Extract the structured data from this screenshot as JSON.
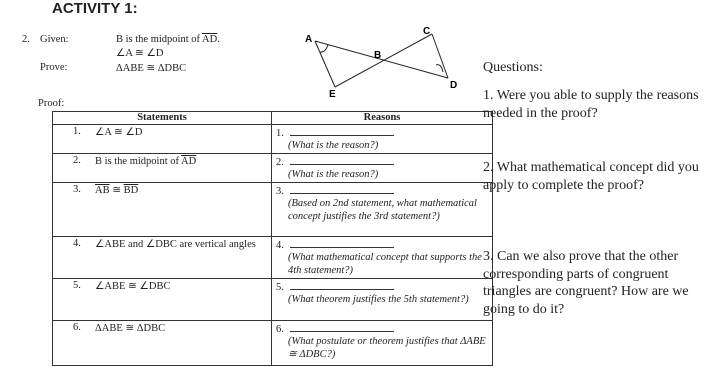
{
  "header": {
    "title": "ACTIVITY 1:"
  },
  "problem": {
    "number": "2.",
    "given_label": "Given:",
    "given_1_text": "B is the midpoint of",
    "given_1_segment": "AD",
    "given_2": "∠A ≅ ∠D",
    "prove_label": "Prove:",
    "prove": "ΔABE ≅ ΔDBC",
    "proof_label": "Proof:"
  },
  "diagram": {
    "labels": [
      "A",
      "B",
      "C",
      "D",
      "E"
    ]
  },
  "table": {
    "headers": [
      "Statements",
      "Reasons"
    ],
    "rows": [
      {
        "number": "1.",
        "statement": "∠A ≅ ∠D",
        "reason_number": "1.",
        "hint": "(What is the reason?)"
      },
      {
        "number": "2.",
        "statement": "B is the midpoint of",
        "segment": "AD",
        "reason_number": "2.",
        "hint": "(What is the reason?)"
      },
      {
        "number": "3.",
        "statement": "",
        "segment": "AB",
        "connector": "≅",
        "segment_2": "BD",
        "reason_number": "3.",
        "hint": "(Based on 2nd statement, what mathematical concept justifies the 3rd statement?)"
      },
      {
        "number": "4.",
        "statement": "∠ABE and ∠DBC are vertical angles",
        "reason_number": "4.",
        "hint": "(What mathematical concept that supports the 4th statement?)"
      },
      {
        "number": "5.",
        "statement": "∠ABE ≅ ∠DBC",
        "reason_number": "5.",
        "hint": "(What theorem justifies the 5th statement?)"
      },
      {
        "number": "6.",
        "statement": "ΔABE ≅ ΔDBC",
        "reason_number": "6.",
        "hint": "(What postulate or theorem justifies that ΔABE ≅ ΔDBC?)"
      }
    ]
  },
  "questions": {
    "title": "Questions:",
    "items": [
      "1. Were you able to supply the reasons needed in the proof?",
      "2. What mathematical concept did you apply to complete the proof?",
      "3. Can we also prove that the other corresponding parts of congruent triangles are congruent? How are we going to do it?"
    ]
  }
}
